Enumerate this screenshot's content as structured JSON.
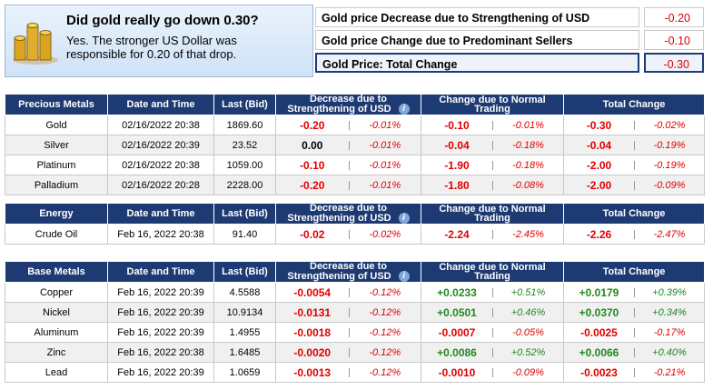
{
  "header": {
    "title": "Did gold really go down 0.30?",
    "text": "Yes. The stronger US Dollar was responsible for 0.20 of that drop."
  },
  "summary": {
    "rows": [
      {
        "label": "Gold price Decrease due to Strengthening of USD",
        "value": "-0.20"
      },
      {
        "label": "Gold price Change due to Predominant Sellers",
        "value": "-0.10"
      },
      {
        "label": "Gold Price: Total Change",
        "value": "-0.30"
      }
    ]
  },
  "tables": [
    {
      "columns": [
        "Precious Metals",
        "Date and Time",
        "Last (Bid)",
        "Decrease due to Strengthening of USD",
        "Change due to Normal Trading",
        "Total Change"
      ],
      "rows": [
        [
          "Gold",
          "02/16/2022 20:38",
          "1869.60",
          "-0.20",
          "-0.01%",
          "-0.10",
          "-0.01%",
          "-0.30",
          "-0.02%"
        ],
        [
          "Silver",
          "02/16/2022 20:39",
          "23.52",
          "0.00",
          "-0.01%",
          "-0.04",
          "-0.18%",
          "-0.04",
          "-0.19%"
        ],
        [
          "Platinum",
          "02/16/2022 20:38",
          "1059.00",
          "-0.10",
          "-0.01%",
          "-1.90",
          "-0.18%",
          "-2.00",
          "-0.19%"
        ],
        [
          "Palladium",
          "02/16/2022 20:28",
          "2228.00",
          "-0.20",
          "-0.01%",
          "-1.80",
          "-0.08%",
          "-2.00",
          "-0.09%"
        ]
      ]
    },
    {
      "columns": [
        "Energy",
        "Date and Time",
        "Last (Bid)",
        "Decrease due to Strengthening of USD",
        "Change due to Normal Trading",
        "Total Change"
      ],
      "rows": [
        [
          "Crude Oil",
          "Feb 16, 2022 20:38",
          "91.40",
          "-0.02",
          "-0.02%",
          "-2.24",
          "-2.45%",
          "-2.26",
          "-2.47%"
        ]
      ]
    },
    {
      "columns": [
        "Base Metals",
        "Date and Time",
        "Last (Bid)",
        "Decrease due to Strengthening of USD",
        "Change due to Normal Trading",
        "Total Change"
      ],
      "rows": [
        [
          "Copper",
          "Feb 16, 2022 20:39",
          "4.5588",
          "-0.0054",
          "-0.12%",
          "+0.0233",
          "+0.51%",
          "+0.0179",
          "+0.39%"
        ],
        [
          "Nickel",
          "Feb 16, 2022 20:39",
          "10.9134",
          "-0.0131",
          "-0.12%",
          "+0.0501",
          "+0.46%",
          "+0.0370",
          "+0.34%"
        ],
        [
          "Aluminum",
          "Feb 16, 2022 20:39",
          "1.4955",
          "-0.0018",
          "-0.12%",
          "-0.0007",
          "-0.05%",
          "-0.0025",
          "-0.17%"
        ],
        [
          "Zinc",
          "Feb 16, 2022 20:38",
          "1.6485",
          "-0.0020",
          "-0.12%",
          "+0.0086",
          "+0.52%",
          "+0.0066",
          "+0.40%"
        ],
        [
          "Lead",
          "Feb 16, 2022 20:39",
          "1.0659",
          "-0.0013",
          "-0.12%",
          "-0.0010",
          "-0.09%",
          "-0.0023",
          "-0.21%"
        ]
      ]
    }
  ]
}
